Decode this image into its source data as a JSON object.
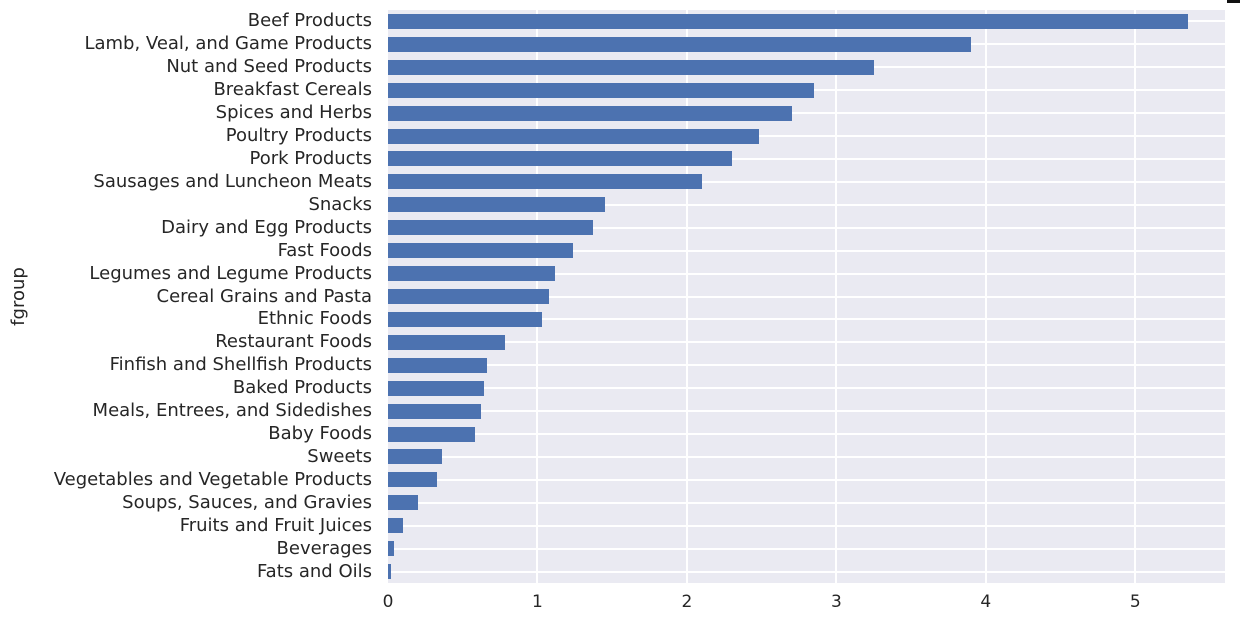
{
  "chart_data": {
    "type": "bar",
    "orientation": "horizontal",
    "title": "",
    "xlabel": "",
    "ylabel": "fgroup",
    "categories": [
      "Beef Products",
      "Lamb, Veal, and Game Products",
      "Nut and Seed Products",
      "Breakfast Cereals",
      "Spices and Herbs",
      "Poultry Products",
      "Pork Products",
      "Sausages and Luncheon Meats",
      "Snacks",
      "Dairy and Egg Products",
      "Fast Foods",
      "Legumes and Legume Products",
      "Cereal Grains and Pasta",
      "Ethnic Foods",
      "Restaurant Foods",
      "Finfish and Shellfish Products",
      "Baked Products",
      "Meals, Entrees, and Sidedishes",
      "Baby Foods",
      "Sweets",
      "Vegetables and Vegetable Products",
      "Soups, Sauces, and Gravies",
      "Fruits and Fruit Juices",
      "Beverages",
      "Fats and Oils"
    ],
    "values": [
      5.35,
      3.9,
      3.25,
      2.85,
      2.7,
      2.48,
      2.3,
      2.1,
      1.45,
      1.37,
      1.24,
      1.12,
      1.08,
      1.03,
      0.78,
      0.66,
      0.64,
      0.62,
      0.58,
      0.36,
      0.33,
      0.2,
      0.1,
      0.04,
      0.02
    ],
    "xticks": [
      "0",
      "1",
      "2",
      "3",
      "4",
      "5"
    ],
    "xlim": [
      0,
      5.6
    ],
    "grid": true,
    "legend": "none",
    "colors": {
      "bar": "#4c72b0",
      "plot_background": "#eaeaf2",
      "gridline": "#ffffff",
      "text": "#262626",
      "figure_background": "#ffffff"
    }
  }
}
